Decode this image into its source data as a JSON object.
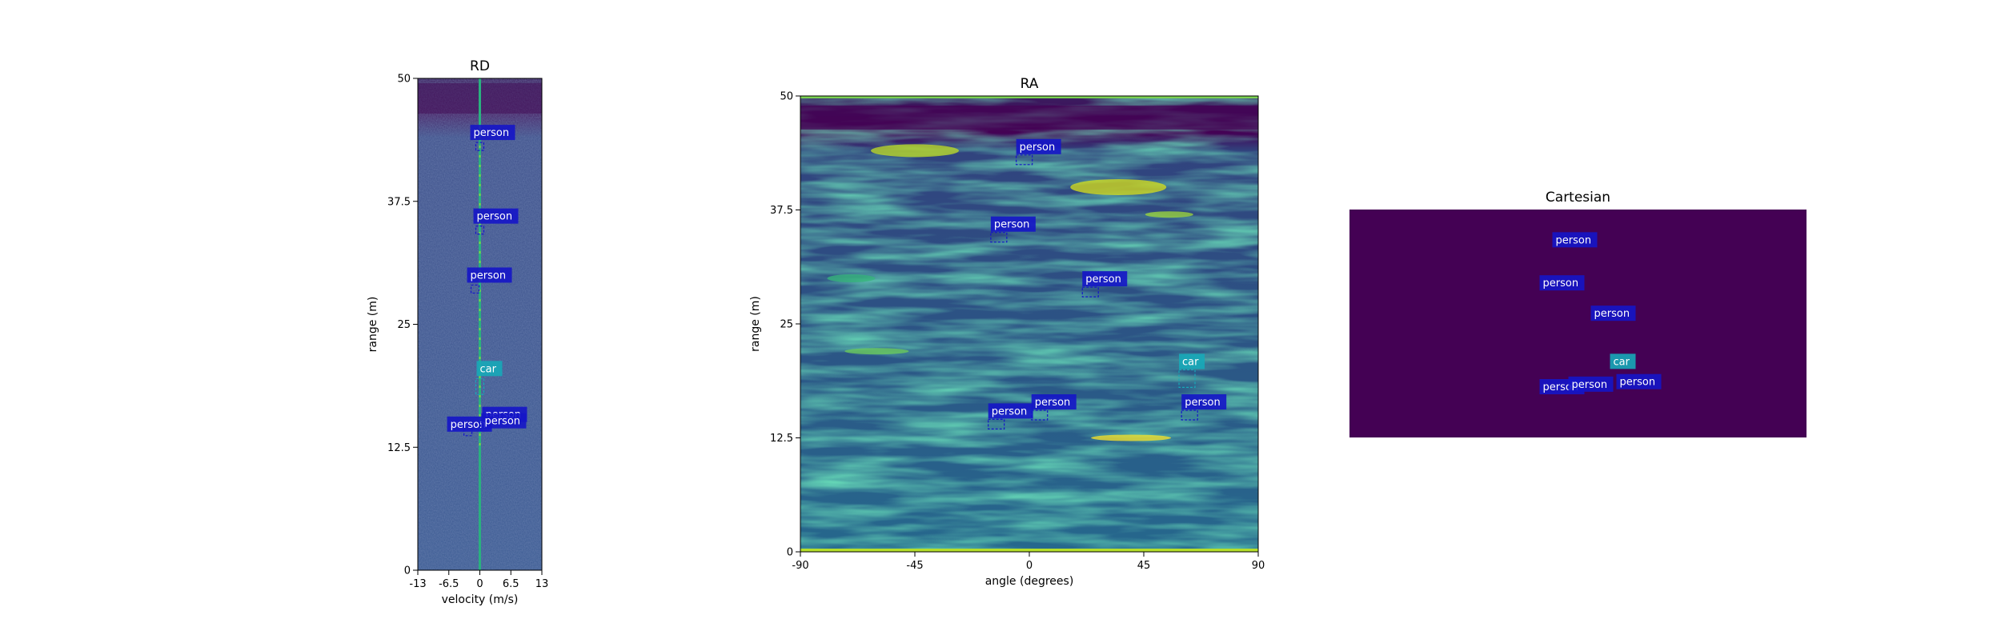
{
  "chart_data": [
    {
      "type": "heatmap",
      "title": "RD",
      "xlabel": "velocity (m/s)",
      "ylabel": "range (m)",
      "xlim": [
        -13,
        13
      ],
      "ylim": [
        0,
        50
      ],
      "x_ticks": [
        "-13",
        "-6.5",
        "0",
        "6.5",
        "13"
      ],
      "y_ticks": [
        "0",
        "12.5",
        "25",
        "37.5",
        "50"
      ],
      "colormap": "viridis",
      "detections": [
        {
          "label": "person",
          "x": 0,
          "y": 43
        },
        {
          "label": "person",
          "x": 0,
          "y": 34.5
        },
        {
          "label": "person",
          "x": -1,
          "y": 28.5
        },
        {
          "label": "car",
          "x": 0,
          "y": 19
        },
        {
          "label": "person",
          "x": 0.5,
          "y": 14.5
        },
        {
          "label": "person",
          "x": -2.5,
          "y": 14
        },
        {
          "label": "person",
          "x": 1,
          "y": 14.5
        }
      ]
    },
    {
      "type": "heatmap",
      "title": "RA",
      "xlabel": "angle (degrees)",
      "ylabel": "range (m)",
      "xlim": [
        -90,
        90
      ],
      "ylim": [
        0,
        50
      ],
      "x_ticks": [
        "-90",
        "-45",
        "0",
        "45",
        "90"
      ],
      "y_ticks": [
        "0",
        "12.5",
        "25",
        "37.5",
        "50"
      ],
      "colormap": "viridis",
      "detections": [
        {
          "label": "person",
          "x": -2,
          "y": 43
        },
        {
          "label": "person",
          "x": -12,
          "y": 34.5
        },
        {
          "label": "person",
          "x": 24,
          "y": 28.5
        },
        {
          "label": "car",
          "x": 62,
          "y": 19
        },
        {
          "label": "person",
          "x": -13,
          "y": 14
        },
        {
          "label": "person",
          "x": 4,
          "y": 15
        },
        {
          "label": "person",
          "x": 63,
          "y": 15
        }
      ]
    },
    {
      "type": "scatter",
      "title": "Cartesian",
      "background": "#440154",
      "detections": [
        {
          "label": "person",
          "x": -0.1,
          "y": 43
        },
        {
          "label": "person",
          "x": -0.3,
          "y": 34.5
        },
        {
          "label": "person",
          "x": 0.5,
          "y": 28.5
        },
        {
          "label": "person",
          "x": -0.3,
          "y": 14
        },
        {
          "label": "person",
          "x": 0.15,
          "y": 14.5
        },
        {
          "label": "car",
          "x": 0.8,
          "y": 19
        },
        {
          "label": "person",
          "x": 0.9,
          "y": 15
        }
      ]
    }
  ],
  "colors": {
    "person_box": "#1515c8",
    "car_box": "#17a8b8",
    "viridis_dark": "#440154",
    "viridis_mid": "#21918c",
    "viridis_bright": "#fde725"
  }
}
